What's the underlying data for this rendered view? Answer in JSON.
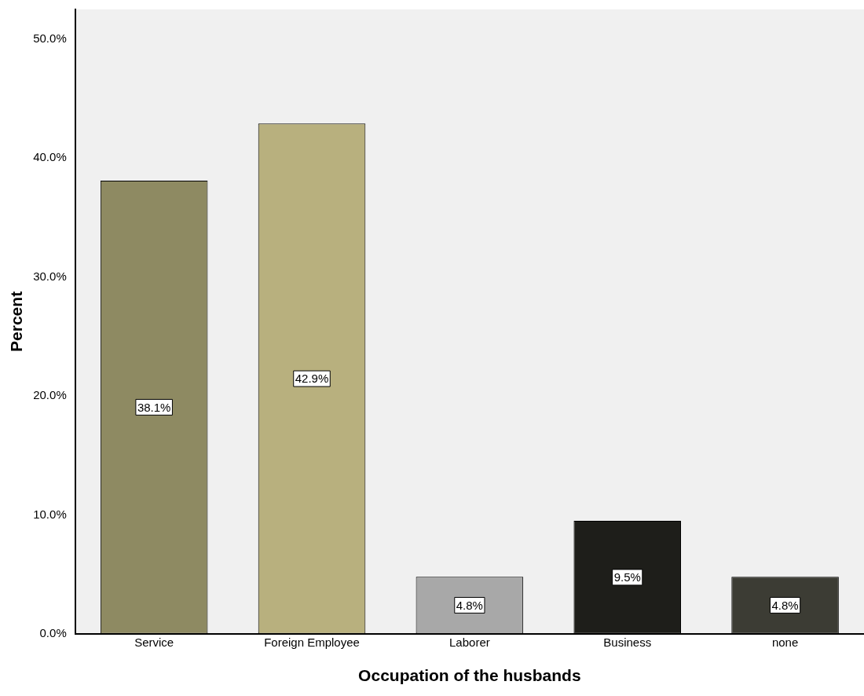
{
  "chart_data": {
    "type": "bar",
    "xlabel": "Occupation of the husbands",
    "ylabel": "Percent",
    "categories": [
      "Service",
      "Foreign Employee",
      "Laborer",
      "Business",
      "none"
    ],
    "values": [
      38.1,
      42.9,
      4.8,
      9.5,
      4.8
    ],
    "value_labels": [
      "38.1%",
      "42.9%",
      "4.8%",
      "9.5%",
      "4.8%"
    ],
    "colors": [
      "#8e8a62",
      "#b8b07e",
      "#a8a8a8",
      "#1e1e1a",
      "#3c3c34"
    ],
    "ylim": [
      0,
      52.5
    ],
    "yticks": [
      {
        "value": 0,
        "label": "0.0%"
      },
      {
        "value": 10,
        "label": "10.0%"
      },
      {
        "value": 20,
        "label": "20.0%"
      },
      {
        "value": 30,
        "label": "30.0%"
      },
      {
        "value": 40,
        "label": "40.0%"
      },
      {
        "value": 50,
        "label": "50.0%"
      }
    ],
    "grid": false,
    "legend": false
  }
}
